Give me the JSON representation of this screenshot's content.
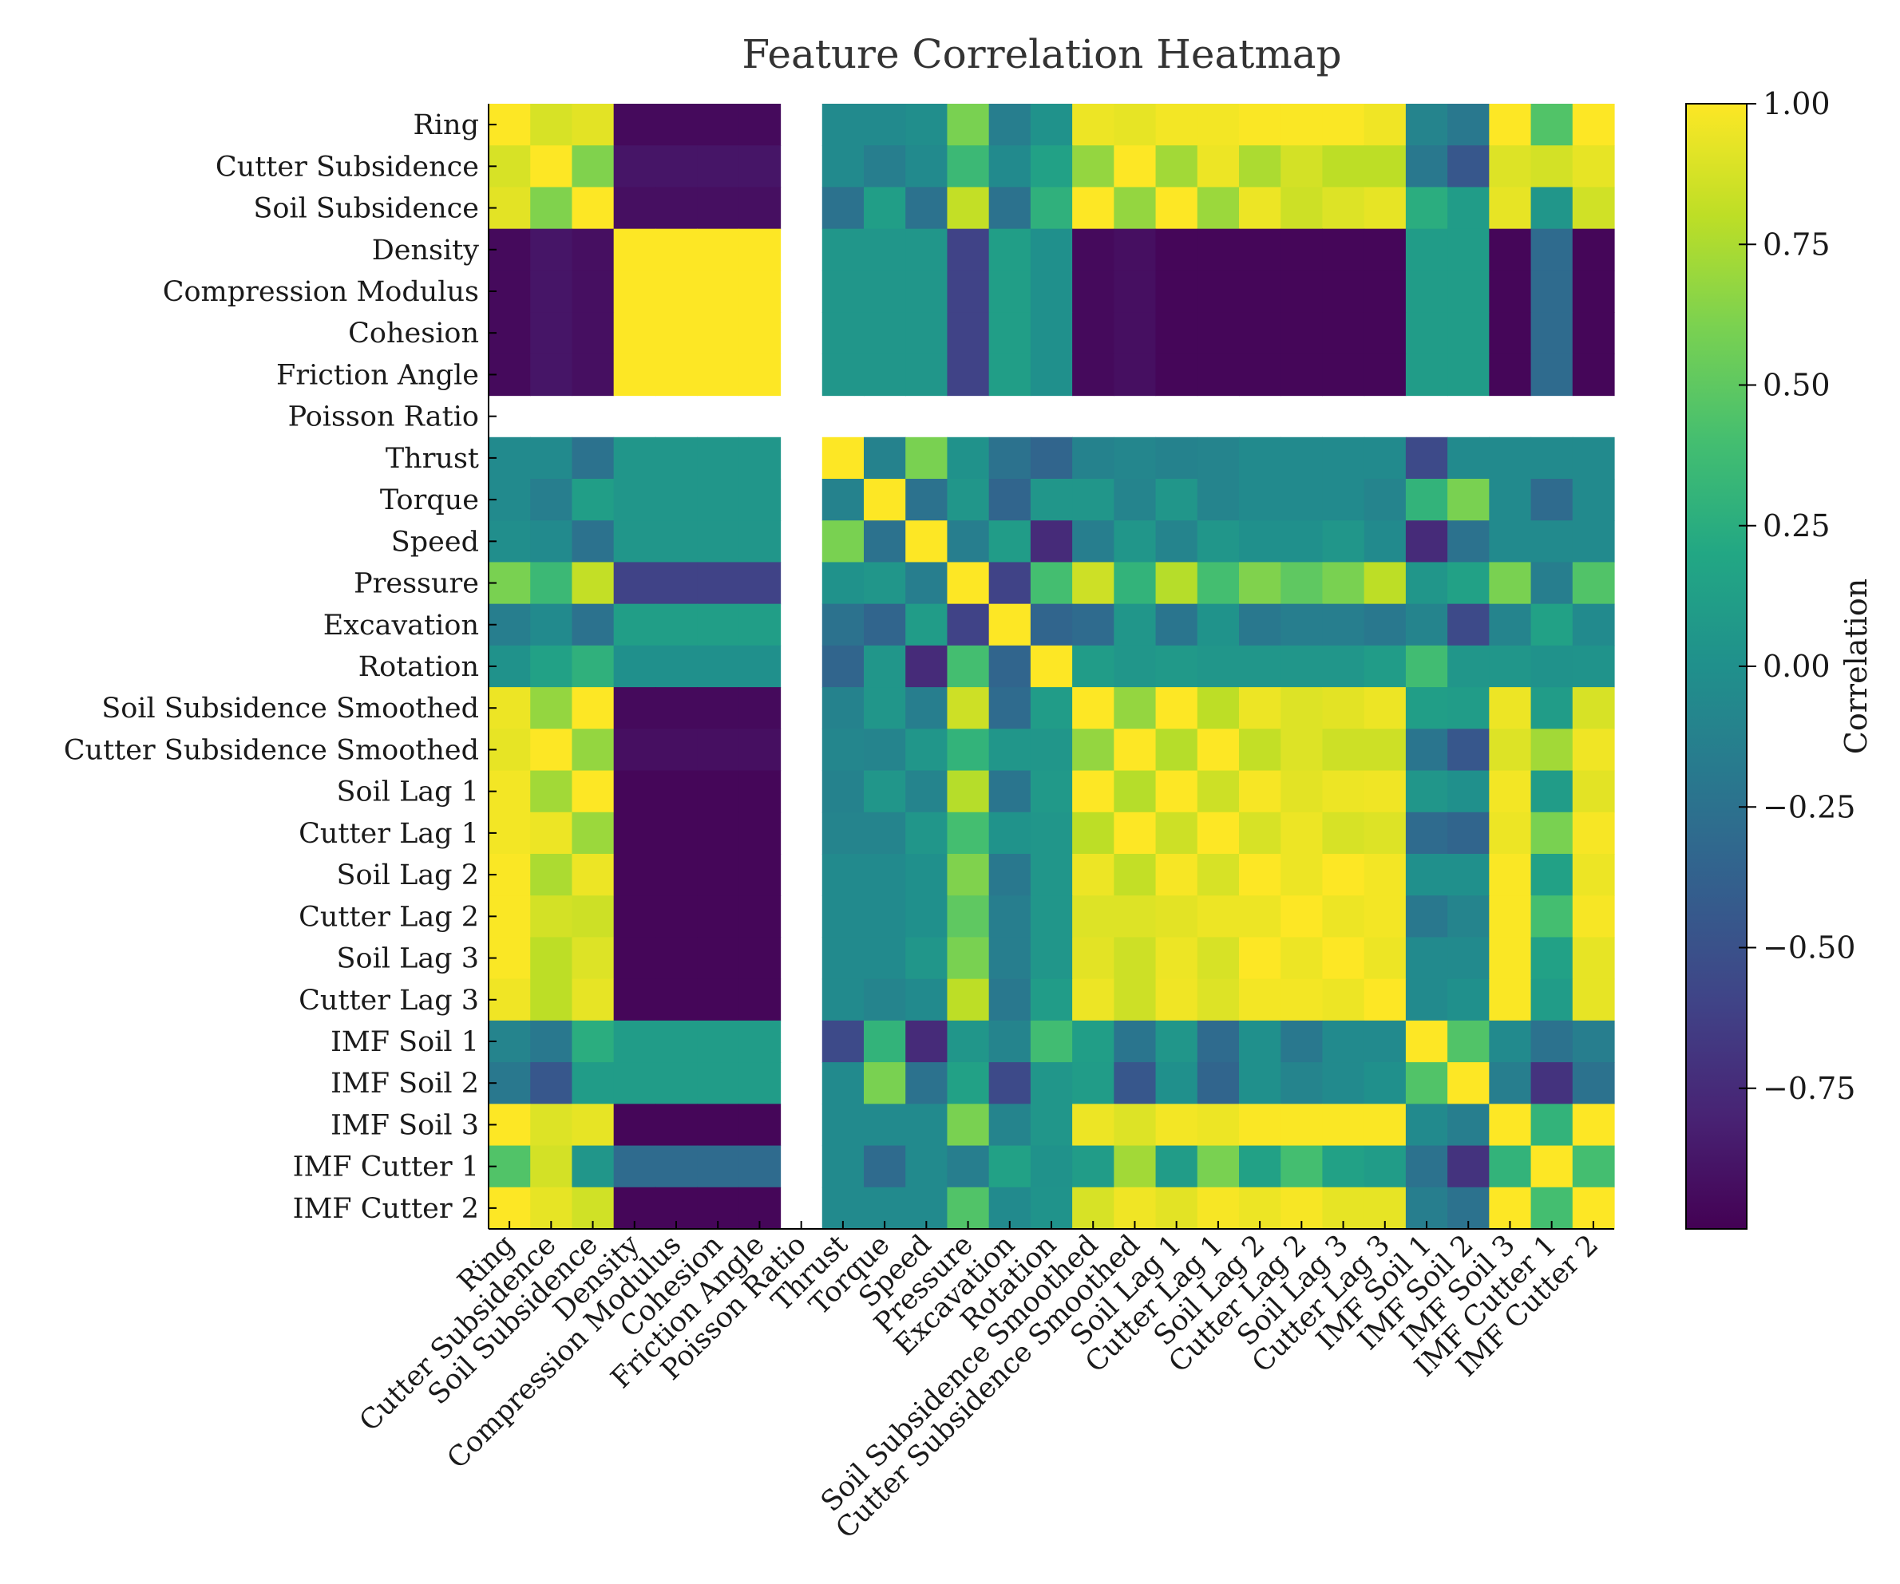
{
  "chart_data": {
    "type": "heatmap",
    "title": "Feature Correlation Heatmap",
    "colorbar_label": "Correlation",
    "colormap": "viridis",
    "vmin": -1.0,
    "vmax": 1.0,
    "colorbar_ticks": [
      "1.00",
      "0.75",
      "0.50",
      "0.25",
      "0.00",
      "−0.25",
      "−0.50",
      "−0.75"
    ],
    "colorbar_tick_values": [
      1.0,
      0.75,
      0.5,
      0.25,
      0.0,
      -0.25,
      -0.5,
      -0.75
    ],
    "labels": [
      "Ring",
      "Cutter Subsidence",
      "Soil Subsidence",
      "Density",
      "Compression Modulus",
      "Cohesion",
      "Friction Angle",
      "Poisson Ratio",
      "Thrust",
      "Torque",
      "Speed",
      "Pressure",
      "Excavation",
      "Rotation",
      "Soil Subsidence Smoothed",
      "Cutter Subsidence Smoothed",
      "Soil Lag 1",
      "Cutter Lag 1",
      "Soil Lag 2",
      "Cutter Lag 2",
      "Soil Lag 3",
      "Cutter Lag 3",
      "IMF Soil 1",
      "IMF Soil 2",
      "IMF Soil 3",
      "IMF Cutter 1",
      "IMF Cutter 2"
    ],
    "matrix": [
      [
        1.0,
        0.88,
        0.92,
        -0.95,
        -0.95,
        -0.95,
        -0.95,
        null,
        -0.05,
        -0.05,
        -0.02,
        0.6,
        -0.15,
        0.02,
        0.95,
        0.93,
        0.97,
        0.97,
        0.99,
        0.99,
        0.99,
        0.96,
        -0.1,
        -0.2,
        1.0,
        0.45,
        1.0
      ],
      [
        0.88,
        1.0,
        0.62,
        -0.88,
        -0.88,
        -0.88,
        -0.88,
        null,
        -0.05,
        -0.15,
        -0.05,
        0.35,
        -0.05,
        0.15,
        0.68,
        1.0,
        0.72,
        0.95,
        0.75,
        0.87,
        0.8,
        0.8,
        -0.2,
        -0.45,
        0.9,
        0.87,
        0.93
      ],
      [
        0.92,
        0.62,
        1.0,
        -0.92,
        -0.92,
        -0.92,
        -0.92,
        null,
        -0.25,
        0.12,
        -0.25,
        0.82,
        -0.25,
        0.28,
        1.0,
        0.68,
        1.0,
        0.7,
        0.95,
        0.85,
        0.9,
        0.93,
        0.25,
        0.1,
        0.93,
        0.05,
        0.86
      ],
      [
        -0.95,
        -0.88,
        -0.92,
        1.0,
        1.0,
        1.0,
        1.0,
        null,
        0.05,
        0.05,
        0.05,
        -0.6,
        0.12,
        0.0,
        -0.95,
        -0.92,
        -0.97,
        -0.97,
        -0.97,
        -0.97,
        -0.97,
        -0.97,
        0.1,
        0.1,
        -0.97,
        -0.3,
        -0.97
      ],
      [
        -0.95,
        -0.88,
        -0.92,
        1.0,
        1.0,
        1.0,
        1.0,
        null,
        0.05,
        0.05,
        0.05,
        -0.6,
        0.12,
        0.0,
        -0.95,
        -0.92,
        -0.97,
        -0.97,
        -0.97,
        -0.97,
        -0.97,
        -0.97,
        0.1,
        0.1,
        -0.97,
        -0.3,
        -0.97
      ],
      [
        -0.95,
        -0.88,
        -0.92,
        1.0,
        1.0,
        1.0,
        1.0,
        null,
        0.05,
        0.05,
        0.05,
        -0.6,
        0.12,
        0.0,
        -0.95,
        -0.92,
        -0.97,
        -0.97,
        -0.97,
        -0.97,
        -0.97,
        -0.97,
        0.1,
        0.1,
        -0.97,
        -0.3,
        -0.97
      ],
      [
        -0.95,
        -0.88,
        -0.92,
        1.0,
        1.0,
        1.0,
        1.0,
        null,
        0.05,
        0.05,
        0.05,
        -0.6,
        0.12,
        0.0,
        -0.95,
        -0.92,
        -0.97,
        -0.97,
        -0.97,
        -0.97,
        -0.97,
        -0.97,
        0.1,
        0.1,
        -0.97,
        -0.3,
        -0.97
      ],
      [
        null,
        null,
        null,
        null,
        null,
        null,
        null,
        null,
        null,
        null,
        null,
        null,
        null,
        null,
        null,
        null,
        null,
        null,
        null,
        null,
        null,
        null,
        null,
        null,
        null,
        null,
        null
      ],
      [
        -0.05,
        -0.05,
        -0.25,
        0.05,
        0.05,
        0.05,
        0.05,
        null,
        1.0,
        -0.12,
        0.6,
        0.02,
        -0.25,
        -0.35,
        -0.12,
        -0.08,
        -0.12,
        -0.1,
        -0.05,
        -0.05,
        -0.05,
        -0.05,
        -0.55,
        -0.05,
        -0.05,
        -0.05,
        -0.05
      ],
      [
        -0.05,
        -0.15,
        0.12,
        0.05,
        0.05,
        0.05,
        0.05,
        null,
        -0.12,
        1.0,
        -0.25,
        0.05,
        -0.35,
        0.05,
        0.05,
        -0.1,
        0.05,
        -0.1,
        -0.05,
        -0.05,
        -0.05,
        -0.1,
        0.3,
        0.6,
        -0.05,
        -0.3,
        -0.05
      ],
      [
        -0.02,
        -0.05,
        -0.25,
        0.05,
        0.05,
        0.05,
        0.05,
        null,
        0.6,
        -0.25,
        1.0,
        -0.15,
        0.1,
        -0.75,
        -0.15,
        0.05,
        -0.1,
        0.05,
        0.0,
        0.0,
        0.05,
        -0.05,
        -0.75,
        -0.25,
        -0.05,
        -0.05,
        -0.05
      ],
      [
        0.6,
        0.35,
        0.82,
        -0.6,
        -0.6,
        -0.6,
        -0.6,
        null,
        0.02,
        0.05,
        -0.15,
        1.0,
        -0.6,
        0.4,
        0.85,
        0.3,
        0.78,
        0.4,
        0.62,
        0.5,
        0.6,
        0.8,
        0.05,
        0.15,
        0.6,
        -0.15,
        0.45
      ],
      [
        -0.15,
        -0.05,
        -0.25,
        0.12,
        0.12,
        0.12,
        0.12,
        null,
        -0.25,
        -0.35,
        0.1,
        -0.6,
        1.0,
        -0.35,
        -0.3,
        0.05,
        -0.22,
        0.03,
        -0.2,
        -0.15,
        -0.15,
        -0.2,
        -0.1,
        -0.55,
        -0.1,
        0.15,
        -0.05
      ],
      [
        0.02,
        0.15,
        0.28,
        0.0,
        0.0,
        0.0,
        0.0,
        null,
        -0.35,
        0.05,
        -0.75,
        0.4,
        -0.35,
        1.0,
        0.1,
        0.05,
        0.08,
        0.05,
        0.05,
        0.05,
        0.05,
        0.1,
        0.38,
        0.05,
        0.05,
        0.02,
        0.03
      ],
      [
        0.95,
        0.68,
        1.0,
        -0.95,
        -0.95,
        -0.95,
        -0.95,
        null,
        -0.12,
        0.05,
        -0.15,
        0.85,
        -0.3,
        0.1,
        1.0,
        0.68,
        1.0,
        0.8,
        0.95,
        0.9,
        0.92,
        0.95,
        0.12,
        0.1,
        0.95,
        0.1,
        0.88
      ],
      [
        0.93,
        1.0,
        0.68,
        -0.92,
        -0.92,
        -0.92,
        -0.92,
        null,
        -0.08,
        -0.1,
        0.05,
        0.3,
        0.05,
        0.05,
        0.68,
        1.0,
        0.78,
        1.0,
        0.82,
        0.9,
        0.85,
        0.85,
        -0.22,
        -0.45,
        0.9,
        0.72,
        0.96
      ],
      [
        0.97,
        0.72,
        1.0,
        -0.97,
        -0.97,
        -0.97,
        -0.97,
        null,
        -0.12,
        0.05,
        -0.1,
        0.78,
        -0.22,
        0.08,
        1.0,
        0.78,
        1.0,
        0.85,
        0.98,
        0.92,
        0.95,
        0.96,
        0.05,
        0.0,
        0.97,
        0.1,
        0.92
      ],
      [
        0.97,
        0.95,
        0.7,
        -0.97,
        -0.97,
        -0.97,
        -0.97,
        null,
        -0.1,
        -0.1,
        0.05,
        0.4,
        0.03,
        0.05,
        0.8,
        1.0,
        0.85,
        1.0,
        0.88,
        0.95,
        0.88,
        0.9,
        -0.3,
        -0.35,
        0.95,
        0.6,
        0.98
      ],
      [
        0.99,
        0.75,
        0.95,
        -0.97,
        -0.97,
        -0.97,
        -0.97,
        null,
        -0.05,
        -0.05,
        0.0,
        0.62,
        -0.2,
        0.05,
        0.95,
        0.82,
        0.98,
        0.88,
        1.0,
        0.95,
        1.0,
        0.97,
        0.0,
        0.0,
        0.99,
        0.15,
        0.95
      ],
      [
        0.99,
        0.87,
        0.85,
        -0.97,
        -0.97,
        -0.97,
        -0.97,
        null,
        -0.05,
        -0.05,
        0.0,
        0.5,
        -0.15,
        0.05,
        0.9,
        0.9,
        0.92,
        0.95,
        0.95,
        1.0,
        0.95,
        0.97,
        -0.2,
        -0.1,
        0.99,
        0.4,
        0.98
      ],
      [
        0.99,
        0.8,
        0.9,
        -0.97,
        -0.97,
        -0.97,
        -0.97,
        null,
        -0.05,
        -0.05,
        0.05,
        0.6,
        -0.15,
        0.05,
        0.92,
        0.85,
        0.95,
        0.88,
        1.0,
        0.95,
        1.0,
        0.95,
        -0.05,
        -0.05,
        0.99,
        0.15,
        0.93
      ],
      [
        0.96,
        0.8,
        0.93,
        -0.97,
        -0.97,
        -0.97,
        -0.97,
        null,
        -0.05,
        -0.1,
        -0.05,
        0.8,
        -0.2,
        0.1,
        0.95,
        0.85,
        0.96,
        0.9,
        0.97,
        0.97,
        0.95,
        1.0,
        -0.05,
        0.0,
        0.99,
        0.1,
        0.93
      ],
      [
        -0.1,
        -0.2,
        0.25,
        0.1,
        0.1,
        0.1,
        0.1,
        null,
        -0.55,
        0.3,
        -0.75,
        0.05,
        -0.1,
        0.38,
        0.12,
        -0.22,
        0.05,
        -0.3,
        0.0,
        -0.2,
        -0.05,
        -0.05,
        1.0,
        0.45,
        -0.05,
        -0.25,
        -0.15
      ],
      [
        -0.2,
        -0.45,
        0.1,
        0.1,
        0.1,
        0.1,
        0.1,
        null,
        -0.05,
        0.6,
        -0.25,
        0.15,
        -0.55,
        0.05,
        0.1,
        -0.45,
        0.0,
        -0.35,
        0.0,
        -0.1,
        -0.05,
        0.0,
        0.45,
        1.0,
        -0.15,
        -0.7,
        -0.25
      ],
      [
        1.0,
        0.9,
        0.93,
        -0.97,
        -0.97,
        -0.97,
        -0.97,
        null,
        -0.05,
        -0.05,
        -0.05,
        0.6,
        -0.1,
        0.05,
        0.95,
        0.9,
        0.97,
        0.95,
        0.99,
        0.99,
        0.99,
        0.99,
        -0.05,
        -0.15,
        1.0,
        0.3,
        1.0
      ],
      [
        0.45,
        0.87,
        0.05,
        -0.3,
        -0.3,
        -0.3,
        -0.3,
        null,
        -0.05,
        -0.3,
        -0.05,
        -0.15,
        0.15,
        0.02,
        0.1,
        0.72,
        0.1,
        0.6,
        0.15,
        0.4,
        0.15,
        0.1,
        -0.25,
        -0.7,
        0.3,
        1.0,
        0.4
      ],
      [
        1.0,
        0.93,
        0.86,
        -0.97,
        -0.97,
        -0.97,
        -0.97,
        null,
        -0.05,
        -0.05,
        -0.05,
        0.45,
        -0.05,
        0.03,
        0.88,
        0.96,
        0.92,
        0.98,
        0.95,
        0.98,
        0.93,
        0.93,
        -0.15,
        -0.25,
        1.0,
        0.4,
        1.0
      ]
    ]
  }
}
